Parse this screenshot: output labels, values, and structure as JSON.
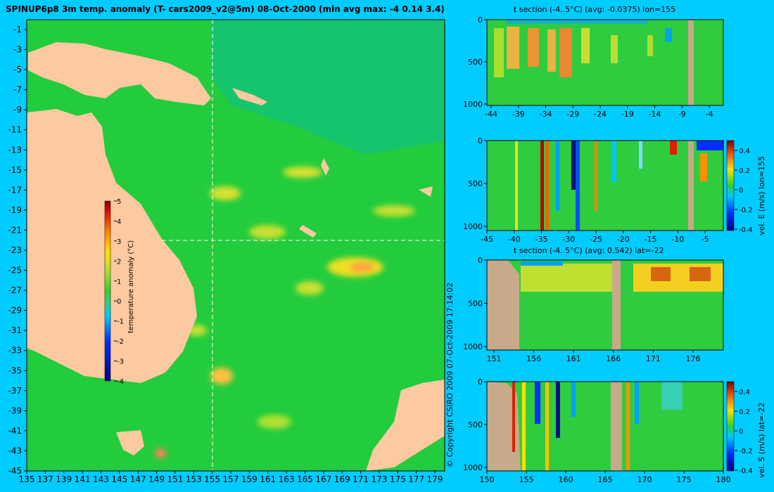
{
  "main_title": "SPINUP6p8 3m temp. anomaly (T- cars2009_v2@5m) 08-Oct-2000 (min avg max: -4 0.14 3.4)",
  "copyright": "© Copyright CSIRO 2009   07-Oct-2009 17:14:02",
  "colors": {
    "background": "#00ccff",
    "land": "#fdc9a0",
    "ocean": "#20cc3c",
    "mask": "#c8a98a"
  },
  "chart_data": [
    {
      "type": "heatmap",
      "name": "map",
      "title": "SPINUP6p8 3m temp. anomaly (T- cars2009_v2@5m) 08-Oct-2000 (min avg max: -4 0.14 3.4)",
      "x_ticks": [
        "135",
        "137",
        "139",
        "141",
        "143",
        "145",
        "147",
        "149",
        "151",
        "153",
        "155",
        "157",
        "159",
        "161",
        "163",
        "165",
        "167",
        "169",
        "171",
        "173",
        "175",
        "177",
        "179"
      ],
      "y_ticks": [
        "-1",
        "-3",
        "-5",
        "-7",
        "-9",
        "-11",
        "-13",
        "-15",
        "-17",
        "-19",
        "-21",
        "-23",
        "-25",
        "-27",
        "-29",
        "-31",
        "-33",
        "-35",
        "-37",
        "-39",
        "-41",
        "-43",
        "-45"
      ],
      "xlim": [
        135,
        180
      ],
      "ylim": [
        -45,
        0
      ],
      "section_lon": 155,
      "section_lat": -22,
      "colorbar": {
        "label": "temperature anomaly (°C)",
        "ticks": [
          "5",
          "4",
          "3",
          "2",
          "1",
          "0",
          "-1",
          "-2",
          "-3",
          "-4"
        ],
        "range": [
          -4,
          5
        ]
      }
    },
    {
      "type": "heatmap",
      "name": "t-section-lon",
      "title": "t section (-4..5°C) (avg: -0.0375) lon=155",
      "x_ticks": [
        "-44",
        "-39",
        "-34",
        "-29",
        "-24",
        "-19",
        "-14",
        "-9",
        "-4"
      ],
      "y_ticks": [
        "0",
        "500",
        "1000"
      ]
    },
    {
      "type": "heatmap",
      "name": "vel-e-section",
      "ylabel": "vel. E (m/s) lon=155",
      "x_ticks": [
        "-45",
        "-40",
        "-35",
        "-30",
        "-25",
        "-20",
        "-15",
        "-10",
        "-5"
      ],
      "y_ticks": [
        "0",
        "500",
        "1000"
      ],
      "colorbar_ticks": [
        "0.4",
        "0.2",
        "0",
        "-0.2",
        "-0.4"
      ]
    },
    {
      "type": "heatmap",
      "name": "t-section-lat",
      "title": "t section (-4..5°C) (avg: 0.542) lat=-22",
      "x_ticks": [
        "151",
        "156",
        "161",
        "166",
        "171",
        "176"
      ],
      "y_ticks": [
        "0",
        "500",
        "1000"
      ]
    },
    {
      "type": "heatmap",
      "name": "vel-s-section",
      "ylabel": "vel. S (m/s) lat=-22",
      "x_ticks": [
        "150",
        "155",
        "160",
        "165",
        "170",
        "175",
        "180"
      ],
      "y_ticks": [
        "0",
        "500",
        "1000"
      ],
      "colorbar_ticks": [
        "0.4",
        "0.2",
        "0",
        "-0.2",
        "-0.4"
      ]
    }
  ]
}
